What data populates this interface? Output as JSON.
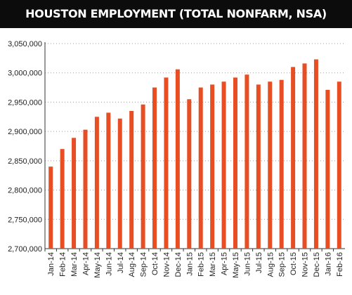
{
  "chart_data": {
    "type": "bar",
    "title": "HOUSTON EMPLOYMENT (TOTAL NONFARM, NSA)",
    "categories": [
      "Jan-14",
      "Feb-14",
      "Mar-14",
      "Apr-14",
      "May-14",
      "Jun-14",
      "Jul-14",
      "Aug-14",
      "Sep-14",
      "Oct-14",
      "Nov-14",
      "Dec-14",
      "Jan-15",
      "Feb-15",
      "Mar-15",
      "Apr-15",
      "May-15",
      "Jun-15",
      "Jul-15",
      "Aug-15",
      "Sep-15",
      "Oct-15",
      "Nov-15",
      "Dec-15",
      "Jan-16",
      "Feb-16"
    ],
    "values": [
      2840000,
      2870000,
      2889000,
      2903000,
      2925000,
      2932000,
      2922000,
      2935000,
      2946000,
      2975000,
      2992000,
      3006000,
      2955000,
      2975000,
      2980000,
      2985000,
      2992000,
      2997000,
      2980000,
      2985000,
      2988000,
      3010000,
      3016000,
      3023000,
      2971000,
      2985000
    ],
    "ylim": [
      2700000,
      3050000
    ],
    "yticks": [
      "2,700,000",
      "2,750,000",
      "2,800,000",
      "2,850,000",
      "2,900,000",
      "2,950,000",
      "3,000,000",
      "3,050,000"
    ],
    "xlabel": "",
    "ylabel": "",
    "grid": true,
    "bar_color": "#e84e24"
  }
}
